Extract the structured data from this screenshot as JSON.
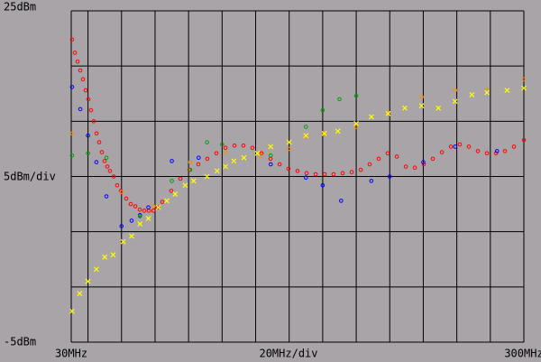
{
  "chart_data": {
    "type": "scatter",
    "y_div_label": "5dBm/div",
    "x_div_label": "20MHz/div",
    "xlim": [
      30,
      300
    ],
    "ylim": [
      -5,
      25
    ],
    "xticks": [
      {
        "value": 30,
        "label": "30MHz"
      },
      40,
      60,
      80,
      100,
      120,
      140,
      160,
      180,
      200,
      220,
      240,
      260,
      280,
      {
        "value": 300,
        "label": "300MHz"
      }
    ],
    "yticks": [
      {
        "value": -5,
        "label": "-5dBm"
      },
      0,
      5,
      10,
      15,
      20,
      {
        "value": 25,
        "label": "25dBm"
      }
    ],
    "grid": true,
    "series": [
      {
        "color": "#ff0000",
        "marker": "circle",
        "x": [
          30.5,
          32.2,
          33.8,
          35.4,
          37,
          38.6,
          40.2,
          41.8,
          43.4,
          45.1,
          46.7,
          48.3,
          49.9,
          51.5,
          53.1,
          55.3,
          57.4,
          59.6,
          62.8,
          65.5,
          68.2,
          70.9,
          73.6,
          76.3,
          79,
          81.6,
          84.3,
          89.7,
          95.1,
          100.5,
          105.8,
          111.2,
          116.6,
          122,
          127.4,
          132.7,
          138.1,
          143.5,
          148.9,
          154.3,
          159.6,
          165,
          170.4,
          175.8,
          181.2,
          186.5,
          191.9,
          197.3,
          202.7,
          208,
          213.4,
          218.8,
          224.2,
          229.6,
          235,
          240.3,
          245.7,
          251.1,
          256.5,
          261.8,
          267.2,
          272.6,
          278,
          283.4,
          288.7,
          294.1,
          300
        ],
        "y": [
          22.4,
          21.2,
          20.4,
          19.6,
          18.8,
          17.8,
          17,
          16,
          15,
          13.9,
          13.1,
          12.2,
          11.4,
          10.9,
          10.5,
          10,
          9.2,
          8.7,
          8,
          7.5,
          7.3,
          7,
          6.9,
          6.9,
          6.9,
          7.2,
          7.7,
          8.7,
          9.8,
          10.6,
          11.1,
          11.6,
          12.1,
          12.6,
          12.8,
          12.8,
          12.6,
          12.1,
          11.6,
          11.1,
          10.7,
          10.5,
          10.3,
          10.2,
          10.2,
          10.2,
          10.3,
          10.4,
          10.6,
          11.1,
          11.6,
          12.1,
          11.8,
          10.9,
          10.8,
          11.1,
          11.6,
          12.2,
          12.7,
          12.9,
          12.7,
          12.3,
          12.1,
          12.1,
          12.3,
          12.7,
          13.3
        ]
      },
      {
        "color": "#0000ff",
        "marker": "circle",
        "x": [
          30.5,
          35.4,
          40,
          45,
          51,
          60,
          66,
          71,
          76,
          90,
          106,
          149,
          170,
          180,
          191,
          209,
          220,
          240,
          259,
          284
        ],
        "y": [
          18.1,
          16.1,
          13.7,
          11.3,
          8.2,
          5.5,
          6,
          6.5,
          7.2,
          11.4,
          11.7,
          11.1,
          9.9,
          9.2,
          7.8,
          9.6,
          10,
          11.3,
          12.7,
          12.3
        ]
      },
      {
        "color": "#00a000",
        "marker": "circle",
        "x": [
          30.5,
          40,
          51,
          71,
          90,
          101,
          111,
          120,
          149,
          170,
          180,
          190,
          200
        ],
        "y": [
          11.9,
          12.1,
          11.7,
          6.4,
          9.6,
          10.6,
          13.1,
          12.9,
          11.9,
          14.5,
          16,
          17,
          17.3
        ]
      },
      {
        "color": "#ff8c00",
        "marker": "circle",
        "x": [
          30.5,
          60,
          79,
          101,
          122,
          143,
          160,
          170,
          181,
          200,
          219,
          239,
          259,
          278,
          300
        ],
        "y": [
          13.9,
          8.6,
          7.3,
          11.3,
          12.2,
          11.9,
          12.5,
          13.6,
          13.9,
          14.5,
          15.8,
          17.2,
          17.8,
          17.8,
          18.8
        ]
      },
      {
        "color": "#ffff00",
        "marker": "x",
        "x": [
          30.5,
          35,
          40,
          45,
          50,
          55,
          61,
          66,
          71,
          76,
          82,
          87,
          92,
          98,
          103,
          111,
          117,
          122,
          127,
          133,
          141,
          149,
          160,
          170,
          181,
          189,
          200,
          209,
          219,
          229,
          239,
          249,
          259,
          269,
          278,
          290,
          300
        ],
        "y": [
          -2.2,
          -0.6,
          0.5,
          1.6,
          2.7,
          2.9,
          4.1,
          4.6,
          5.7,
          6.2,
          7.2,
          7.8,
          8.4,
          9.2,
          9.6,
          10,
          10.5,
          10.9,
          11.4,
          11.7,
          12.1,
          12.7,
          13.1,
          13.7,
          13.9,
          14.1,
          14.8,
          15.4,
          15.7,
          16.2,
          16.4,
          16.2,
          16.8,
          17.4,
          17.6,
          17.8,
          18
        ]
      }
    ]
  }
}
